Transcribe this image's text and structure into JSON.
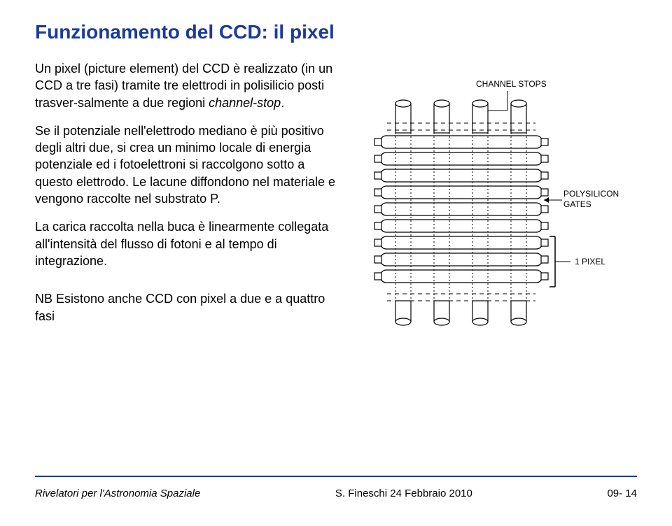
{
  "title": "Funzionamento del CCD: il pixel",
  "paragraphs": {
    "p1_a": "Un pixel (picture element) del CCD è realizzato (in un CCD a tre fasi) tramite tre elettrodi in polisilicio posti trasver-salmente a due regioni ",
    "p1_italic": "channel-stop",
    "p1_b": ".",
    "p2": "Se il potenziale nell'elettrodo mediano è più positivo degli altri due, si crea un minimo locale di energia potenziale ed i fotoelettroni si raccolgono sotto a questo elettrodo. Le lacune diffondono nel materiale e vengono raccolte nel substrato P.",
    "p3": "La carica raccolta nella buca è linearmente collegata all'intensità del flusso di fotoni e al tempo di integrazione.",
    "p4": "NB Esistono anche CCD con pixel a due e a quattro fasi"
  },
  "diagram": {
    "labels": {
      "channel_stops": "CHANNEL STOPS",
      "polysilicon": "POLYSILICON",
      "gates": "GATES",
      "one_pixel": "1 PIXEL"
    },
    "colors": {
      "stroke": "#000000",
      "fill": "#ffffff",
      "gate_fill": "#f0f0f0"
    },
    "gate_rows": 9,
    "stop_columns": 4
  },
  "footer": {
    "left": "Rivelatori per l'Astronomia Spaziale",
    "mid": "S. Fineschi   24 Febbraio 2010",
    "right": "09- 14"
  }
}
